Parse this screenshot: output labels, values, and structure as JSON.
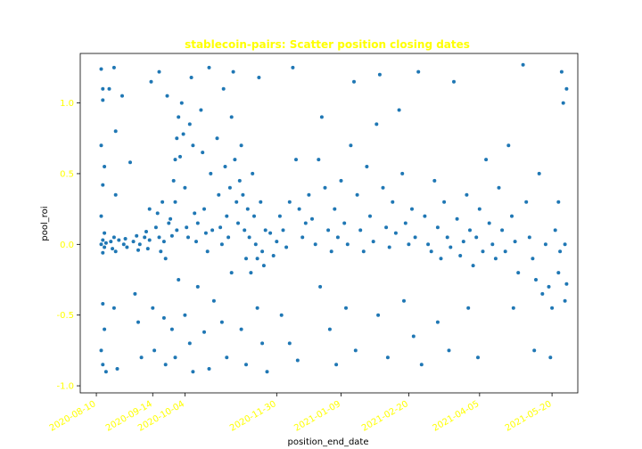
{
  "chart_data": {
    "type": "scatter",
    "title": "stablecoin-pairs: Scatter position closing dates",
    "xlabel": "position_end_date",
    "ylabel": "pool_roi",
    "x_ticks": [
      "2020-08-10",
      "2020-09-14",
      "2020-10-04",
      "2020-11-30",
      "2021-01-09",
      "2021-02-20",
      "2021-04-05",
      "2021-05-20"
    ],
    "y_ticks": [
      "-1.0",
      "-0.5",
      "0.0",
      "0.5",
      "1.0"
    ],
    "xlim": [
      "2020-07-31",
      "2021-06-05"
    ],
    "ylim": [
      -1.05,
      1.35
    ],
    "grid": false,
    "legend": "none",
    "colors": {
      "points": "#1f77b4",
      "title": "#ffff00",
      "tick_labels": "#ffff00",
      "axis_labels": "#000000",
      "axes": "#000000"
    },
    "series": [
      {
        "points": [
          [
            "2020-08-13",
            1.24
          ],
          [
            "2020-08-14",
            1.1
          ],
          [
            "2020-08-14",
            1.02
          ],
          [
            "2020-08-13",
            0.7
          ],
          [
            "2020-08-15",
            0.55
          ],
          [
            "2020-08-14",
            0.42
          ],
          [
            "2020-08-13",
            0.2
          ],
          [
            "2020-08-15",
            0.08
          ],
          [
            "2020-08-14",
            0.03
          ],
          [
            "2020-08-13",
            0.0
          ],
          [
            "2020-08-15",
            -0.02
          ],
          [
            "2020-08-14",
            -0.06
          ],
          [
            "2020-08-16",
            0.01
          ],
          [
            "2020-08-14",
            -0.42
          ],
          [
            "2020-08-15",
            -0.6
          ],
          [
            "2020-08-13",
            -0.75
          ],
          [
            "2020-08-14",
            -0.85
          ],
          [
            "2020-08-16",
            -0.9
          ],
          [
            "2020-08-18",
            1.1
          ],
          [
            "2020-08-19",
            0.02
          ],
          [
            "2020-08-20",
            -0.03
          ],
          [
            "2020-08-21",
            0.05
          ],
          [
            "2020-08-22",
            -0.05
          ],
          [
            "2020-08-24",
            0.03
          ],
          [
            "2020-08-21",
            1.25
          ],
          [
            "2020-08-22",
            0.8
          ],
          [
            "2020-08-22",
            0.35
          ],
          [
            "2020-08-21",
            -0.45
          ],
          [
            "2020-08-23",
            -0.88
          ],
          [
            "2020-08-26",
            1.05
          ],
          [
            "2020-08-27",
            0.0
          ],
          [
            "2020-08-28",
            0.04
          ],
          [
            "2020-08-29",
            -0.02
          ],
          [
            "2020-08-31",
            0.58
          ],
          [
            "2020-09-02",
            0.02
          ],
          [
            "2020-09-04",
            0.06
          ],
          [
            "2020-09-05",
            -0.04
          ],
          [
            "2020-09-06",
            0.0
          ],
          [
            "2020-09-03",
            -0.35
          ],
          [
            "2020-09-05",
            -0.55
          ],
          [
            "2020-09-07",
            -0.8
          ],
          [
            "2020-09-09",
            0.05
          ],
          [
            "2020-09-10",
            0.09
          ],
          [
            "2020-09-11",
            -0.03
          ],
          [
            "2020-09-12",
            0.03
          ],
          [
            "2020-09-13",
            1.15
          ],
          [
            "2020-09-12",
            0.25
          ],
          [
            "2020-09-14",
            -0.45
          ],
          [
            "2020-09-15",
            -0.75
          ],
          [
            "2020-09-16",
            0.12
          ],
          [
            "2020-09-17",
            0.22
          ],
          [
            "2020-09-18",
            0.05
          ],
          [
            "2020-09-19",
            -0.05
          ],
          [
            "2020-09-18",
            1.22
          ],
          [
            "2020-09-20",
            0.3
          ],
          [
            "2020-09-21",
            0.02
          ],
          [
            "2020-09-22",
            -0.1
          ],
          [
            "2020-09-21",
            -0.52
          ],
          [
            "2020-09-22",
            -0.85
          ],
          [
            "2020-09-23",
            1.05
          ],
          [
            "2020-09-24",
            0.15
          ],
          [
            "2020-09-25",
            0.18
          ],
          [
            "2020-09-26",
            0.06
          ],
          [
            "2020-09-27",
            0.45
          ],
          [
            "2020-09-28",
            0.6
          ],
          [
            "2020-09-29",
            0.75
          ],
          [
            "2020-09-30",
            0.9
          ],
          [
            "2020-09-28",
            0.3
          ],
          [
            "2020-09-29",
            0.1
          ],
          [
            "2020-09-26",
            -0.6
          ],
          [
            "2020-09-28",
            -0.8
          ],
          [
            "2020-09-30",
            -0.25
          ],
          [
            "2020-10-01",
            0.62
          ],
          [
            "2020-10-02",
            1.0
          ],
          [
            "2020-10-03",
            0.78
          ],
          [
            "2020-10-04",
            0.4
          ],
          [
            "2020-10-05",
            0.12
          ],
          [
            "2020-10-06",
            0.05
          ],
          [
            "2020-10-07",
            0.85
          ],
          [
            "2020-10-08",
            1.18
          ],
          [
            "2020-10-09",
            0.7
          ],
          [
            "2020-10-10",
            0.22
          ],
          [
            "2020-10-11",
            0.02
          ],
          [
            "2020-10-12",
            0.15
          ],
          [
            "2020-10-04",
            -0.5
          ],
          [
            "2020-10-07",
            -0.7
          ],
          [
            "2020-10-09",
            -0.9
          ],
          [
            "2020-10-12",
            -0.3
          ],
          [
            "2020-10-14",
            0.95
          ],
          [
            "2020-10-15",
            0.65
          ],
          [
            "2020-10-16",
            0.25
          ],
          [
            "2020-10-17",
            0.08
          ],
          [
            "2020-10-18",
            -0.05
          ],
          [
            "2020-10-19",
            1.25
          ],
          [
            "2020-10-20",
            0.5
          ],
          [
            "2020-10-21",
            0.1
          ],
          [
            "2020-10-16",
            -0.62
          ],
          [
            "2020-10-19",
            -0.88
          ],
          [
            "2020-10-22",
            -0.4
          ],
          [
            "2020-10-24",
            0.75
          ],
          [
            "2020-10-25",
            0.35
          ],
          [
            "2020-10-26",
            0.12
          ],
          [
            "2020-10-27",
            0.0
          ],
          [
            "2020-10-28",
            1.1
          ],
          [
            "2020-10-29",
            0.55
          ],
          [
            "2020-10-30",
            0.2
          ],
          [
            "2020-10-31",
            0.05
          ],
          [
            "2020-11-01",
            0.4
          ],
          [
            "2020-11-02",
            0.9
          ],
          [
            "2020-11-03",
            1.22
          ],
          [
            "2020-11-04",
            0.6
          ],
          [
            "2020-11-05",
            0.3
          ],
          [
            "2020-10-27",
            -0.55
          ],
          [
            "2020-10-30",
            -0.8
          ],
          [
            "2020-11-02",
            -0.2
          ],
          [
            "2020-11-06",
            0.15
          ],
          [
            "2020-11-07",
            0.45
          ],
          [
            "2020-11-08",
            0.7
          ],
          [
            "2020-11-09",
            0.35
          ],
          [
            "2020-11-10",
            0.1
          ],
          [
            "2020-11-11",
            -0.1
          ],
          [
            "2020-11-12",
            0.25
          ],
          [
            "2020-11-13",
            0.05
          ],
          [
            "2020-11-14",
            -0.2
          ],
          [
            "2020-11-08",
            -0.6
          ],
          [
            "2020-11-11",
            -0.85
          ],
          [
            "2020-11-15",
            0.5
          ],
          [
            "2020-11-16",
            0.2
          ],
          [
            "2020-11-17",
            0.0
          ],
          [
            "2020-11-18",
            -0.1
          ],
          [
            "2020-11-19",
            1.18
          ],
          [
            "2020-11-20",
            0.3
          ],
          [
            "2020-11-21",
            -0.05
          ],
          [
            "2020-11-22",
            -0.15
          ],
          [
            "2020-11-23",
            0.1
          ],
          [
            "2020-11-18",
            -0.45
          ],
          [
            "2020-11-21",
            -0.7
          ],
          [
            "2020-11-24",
            -0.9
          ],
          [
            "2020-11-26",
            0.08
          ],
          [
            "2020-11-28",
            -0.08
          ],
          [
            "2020-11-30",
            0.02
          ],
          [
            "2020-12-02",
            0.2
          ],
          [
            "2020-12-04",
            0.1
          ],
          [
            "2020-12-06",
            -0.02
          ],
          [
            "2020-12-08",
            0.3
          ],
          [
            "2020-12-10",
            1.25
          ],
          [
            "2020-12-12",
            0.6
          ],
          [
            "2020-12-14",
            0.25
          ],
          [
            "2020-12-16",
            0.05
          ],
          [
            "2020-12-18",
            0.15
          ],
          [
            "2020-12-03",
            -0.5
          ],
          [
            "2020-12-08",
            -0.7
          ],
          [
            "2020-12-13",
            -0.82
          ],
          [
            "2020-12-20",
            0.35
          ],
          [
            "2020-12-22",
            0.18
          ],
          [
            "2020-12-24",
            0.0
          ],
          [
            "2020-12-26",
            0.6
          ],
          [
            "2020-12-28",
            0.9
          ],
          [
            "2020-12-30",
            0.4
          ],
          [
            "2021-01-01",
            0.1
          ],
          [
            "2021-01-03",
            -0.05
          ],
          [
            "2021-01-05",
            0.25
          ],
          [
            "2021-01-07",
            0.05
          ],
          [
            "2020-12-27",
            -0.3
          ],
          [
            "2021-01-02",
            -0.6
          ],
          [
            "2021-01-06",
            -0.85
          ],
          [
            "2021-01-09",
            0.45
          ],
          [
            "2021-01-11",
            0.15
          ],
          [
            "2021-01-13",
            0.0
          ],
          [
            "2021-01-15",
            0.7
          ],
          [
            "2021-01-17",
            1.15
          ],
          [
            "2021-01-19",
            0.35
          ],
          [
            "2021-01-21",
            0.1
          ],
          [
            "2021-01-23",
            -0.05
          ],
          [
            "2021-01-12",
            -0.45
          ],
          [
            "2021-01-18",
            -0.75
          ],
          [
            "2021-01-25",
            0.55
          ],
          [
            "2021-01-27",
            0.2
          ],
          [
            "2021-01-29",
            0.02
          ],
          [
            "2021-01-31",
            0.85
          ],
          [
            "2021-02-02",
            1.2
          ],
          [
            "2021-02-04",
            0.4
          ],
          [
            "2021-02-06",
            0.12
          ],
          [
            "2021-02-08",
            -0.02
          ],
          [
            "2021-02-01",
            -0.5
          ],
          [
            "2021-02-07",
            -0.8
          ],
          [
            "2021-02-10",
            0.3
          ],
          [
            "2021-02-12",
            0.08
          ],
          [
            "2021-02-14",
            0.95
          ],
          [
            "2021-02-16",
            0.5
          ],
          [
            "2021-02-18",
            0.15
          ],
          [
            "2021-02-20",
            0.0
          ],
          [
            "2021-02-22",
            0.25
          ],
          [
            "2021-02-24",
            0.05
          ],
          [
            "2021-02-26",
            1.22
          ],
          [
            "2021-02-17",
            -0.4
          ],
          [
            "2021-02-23",
            -0.65
          ],
          [
            "2021-02-28",
            -0.85
          ],
          [
            "2021-03-02",
            0.2
          ],
          [
            "2021-03-04",
            0.0
          ],
          [
            "2021-03-06",
            -0.05
          ],
          [
            "2021-03-08",
            0.45
          ],
          [
            "2021-03-10",
            0.12
          ],
          [
            "2021-03-12",
            -0.1
          ],
          [
            "2021-03-14",
            0.3
          ],
          [
            "2021-03-16",
            0.05
          ],
          [
            "2021-03-18",
            -0.02
          ],
          [
            "2021-03-20",
            1.15
          ],
          [
            "2021-03-10",
            -0.55
          ],
          [
            "2021-03-17",
            -0.75
          ],
          [
            "2021-03-22",
            0.18
          ],
          [
            "2021-03-24",
            -0.08
          ],
          [
            "2021-03-26",
            0.02
          ],
          [
            "2021-03-28",
            0.35
          ],
          [
            "2021-03-30",
            0.1
          ],
          [
            "2021-04-01",
            -0.15
          ],
          [
            "2021-04-03",
            0.05
          ],
          [
            "2021-04-05",
            0.25
          ],
          [
            "2021-04-07",
            -0.05
          ],
          [
            "2021-04-09",
            0.6
          ],
          [
            "2021-03-29",
            -0.45
          ],
          [
            "2021-04-04",
            -0.8
          ],
          [
            "2021-04-11",
            0.15
          ],
          [
            "2021-04-13",
            0.0
          ],
          [
            "2021-04-15",
            -0.1
          ],
          [
            "2021-04-17",
            0.4
          ],
          [
            "2021-04-19",
            0.1
          ],
          [
            "2021-04-21",
            -0.05
          ],
          [
            "2021-04-23",
            0.7
          ],
          [
            "2021-04-25",
            0.2
          ],
          [
            "2021-04-27",
            0.02
          ],
          [
            "2021-04-29",
            -0.2
          ],
          [
            "2021-04-26",
            -0.45
          ],
          [
            "2021-05-02",
            1.27
          ],
          [
            "2021-05-04",
            0.3
          ],
          [
            "2021-05-06",
            0.05
          ],
          [
            "2021-05-08",
            -0.1
          ],
          [
            "2021-05-10",
            -0.25
          ],
          [
            "2021-05-12",
            0.5
          ],
          [
            "2021-05-14",
            -0.35
          ],
          [
            "2021-05-16",
            0.0
          ],
          [
            "2021-05-18",
            -0.3
          ],
          [
            "2021-05-20",
            -0.45
          ],
          [
            "2021-05-22",
            0.1
          ],
          [
            "2021-05-24",
            -0.2
          ],
          [
            "2021-05-26",
            1.22
          ],
          [
            "2021-05-27",
            1.0
          ],
          [
            "2021-05-28",
            -0.4
          ],
          [
            "2021-05-29",
            1.1
          ],
          [
            "2021-05-25",
            -0.05
          ],
          [
            "2021-05-09",
            -0.75
          ],
          [
            "2021-05-19",
            -0.8
          ],
          [
            "2021-05-28",
            0.0
          ],
          [
            "2021-05-29",
            -0.28
          ],
          [
            "2021-05-24",
            0.3
          ]
        ]
      }
    ]
  }
}
